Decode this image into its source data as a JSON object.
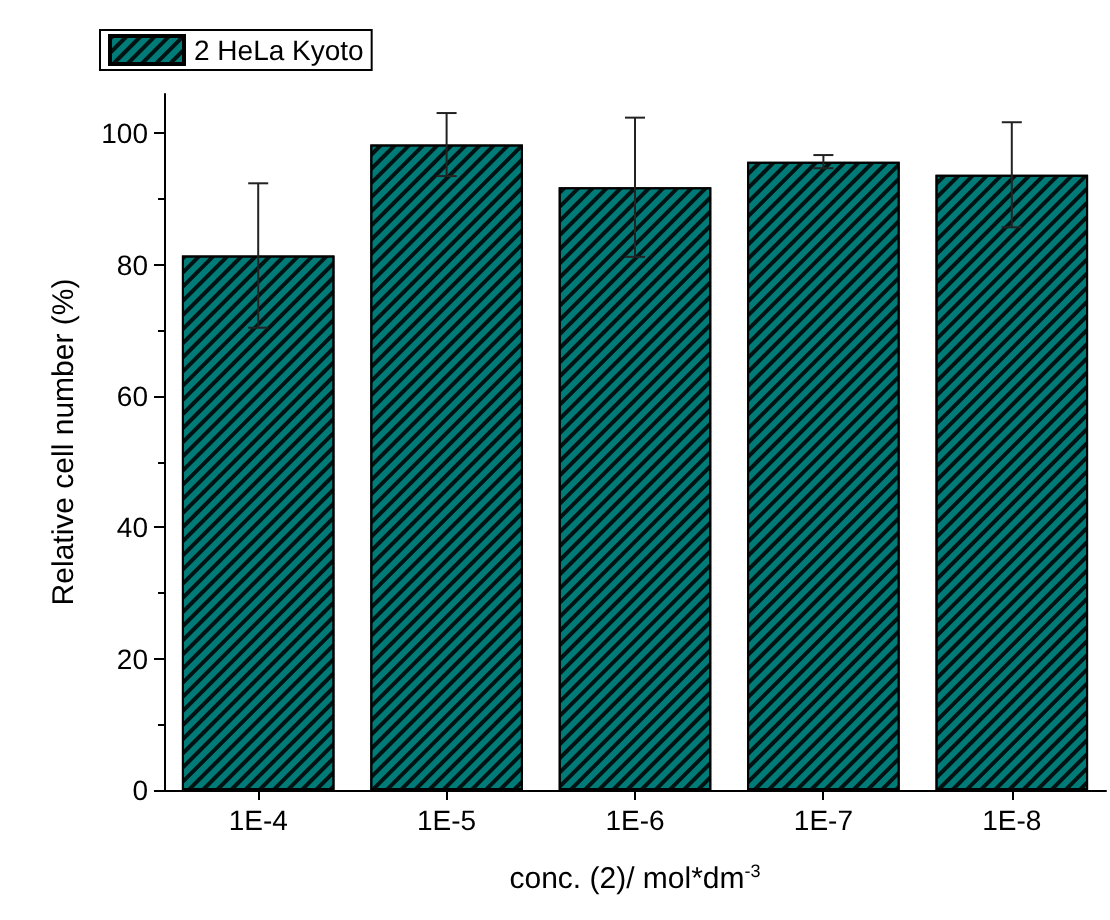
{
  "chart_data": {
    "type": "bar",
    "categories": [
      "1E-4",
      "1E-5",
      "1E-6",
      "1E-7",
      "1E-8"
    ],
    "series": [
      {
        "name": "2 HeLa Kyoto",
        "color": "#007b78",
        "values": [
          81.4,
          98.3,
          91.8,
          95.7,
          93.7
        ],
        "errors": [
          11,
          4.8,
          10.6,
          1,
          8
        ]
      }
    ],
    "xlabel": "conc. (2)/ mol*dm$^{-3}$",
    "ylabel": "Relative cell number (%)",
    "ylim": [
      0,
      106
    ],
    "yticks": [
      0,
      20,
      40,
      60,
      80,
      100
    ],
    "legend": "top left",
    "grid": false
  }
}
